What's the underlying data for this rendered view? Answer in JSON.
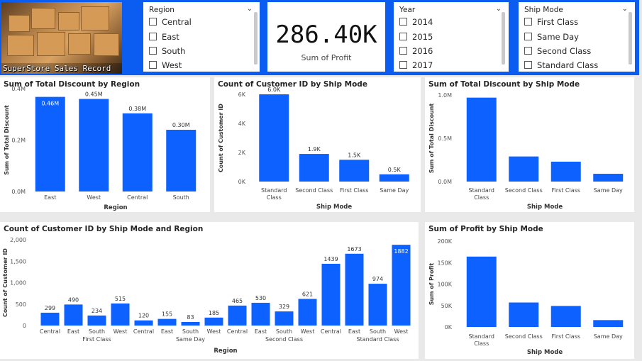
{
  "colors": {
    "accent": "#0b5cf0",
    "bar": "#0d62ff"
  },
  "logo": {
    "caption": "SuperStore Sales Record"
  },
  "region_slicer": {
    "title": "Region",
    "items": [
      "Central",
      "East",
      "South",
      "West"
    ]
  },
  "kpi": {
    "value": "286.40K",
    "label": "Sum of Profit"
  },
  "year_slicer": {
    "title": "Year",
    "items": [
      "2014",
      "2015",
      "2016",
      "2017"
    ]
  },
  "shipmode_slicer": {
    "title": "Ship Mode",
    "items": [
      "First Class",
      "Same Day",
      "Second Class",
      "Standard Class"
    ]
  },
  "chart_data": [
    {
      "id": "discount_by_region",
      "type": "bar",
      "title": "Sum of Total Discount by Region",
      "xlabel": "Region",
      "ylabel": "Sum of Total Discount",
      "categories": [
        "East",
        "West",
        "Central",
        "South"
      ],
      "values": [
        0.46,
        0.45,
        0.38,
        0.3
      ],
      "data_labels": [
        "0.46M",
        "0.45M",
        "0.38M",
        "0.30M"
      ],
      "yticks": [
        "0.0M",
        "0.2M",
        "0.4M"
      ],
      "ylim": [
        0,
        0.5
      ]
    },
    {
      "id": "customers_by_shipmode",
      "type": "bar",
      "title": "Count of Customer ID by Ship Mode",
      "xlabel": "Ship Mode",
      "ylabel": "Count of Customer ID",
      "categories": [
        "Standard Class",
        "Second Class",
        "First Class",
        "Same Day"
      ],
      "values": [
        6000,
        1900,
        1500,
        500
      ],
      "data_labels": [
        "6.0K",
        "1.9K",
        "1.5K",
        "0.5K"
      ],
      "yticks": [
        "0K",
        "2K",
        "4K",
        "6K"
      ],
      "ylim": [
        0,
        6000
      ]
    },
    {
      "id": "discount_by_shipmode",
      "type": "bar",
      "title": "Sum of Total Discount by Ship Mode",
      "xlabel": "Ship Mode",
      "ylabel": "Sum of Total Discount",
      "categories": [
        "Standard Class",
        "Second Class",
        "First Class",
        "Same Day"
      ],
      "values": [
        0.97,
        0.29,
        0.23,
        0.09
      ],
      "yticks": [
        "0.0M",
        "0.5M",
        "1.0M"
      ],
      "ylim": [
        0,
        1.0
      ]
    },
    {
      "id": "customers_by_shipmode_region",
      "type": "bar",
      "title": "Count of Customer ID by Ship Mode and Region",
      "xlabel": "Region",
      "ylabel": "Count of Customer ID",
      "groups": [
        {
          "name": "First Class",
          "categories": [
            "Central",
            "East",
            "South",
            "West"
          ],
          "values": [
            299,
            490,
            234,
            515
          ]
        },
        {
          "name": "Same Day",
          "categories": [
            "Central",
            "East",
            "South",
            "West"
          ],
          "values": [
            120,
            155,
            83,
            185
          ]
        },
        {
          "name": "Second Class",
          "categories": [
            "Central",
            "East",
            "South",
            "West"
          ],
          "values": [
            465,
            530,
            329,
            621
          ]
        },
        {
          "name": "Standard Class",
          "categories": [
            "Central",
            "East",
            "South",
            "West"
          ],
          "values": [
            1439,
            1673,
            974,
            1882
          ]
        }
      ],
      "yticks": [
        "0",
        "500",
        "1,000",
        "1,500",
        "2,000"
      ],
      "ylim": [
        0,
        2000
      ]
    },
    {
      "id": "profit_by_shipmode",
      "type": "bar",
      "title": "Sum of Profit by Ship Mode",
      "xlabel": "Ship Mode",
      "ylabel": "Sum of Profit",
      "categories": [
        "Standard Class",
        "Second Class",
        "First Class",
        "Same Day"
      ],
      "values": [
        164000,
        57000,
        49000,
        16000
      ],
      "yticks": [
        "0K",
        "50K",
        "100K",
        "150K",
        "200K"
      ],
      "ylim": [
        0,
        200000
      ]
    }
  ]
}
